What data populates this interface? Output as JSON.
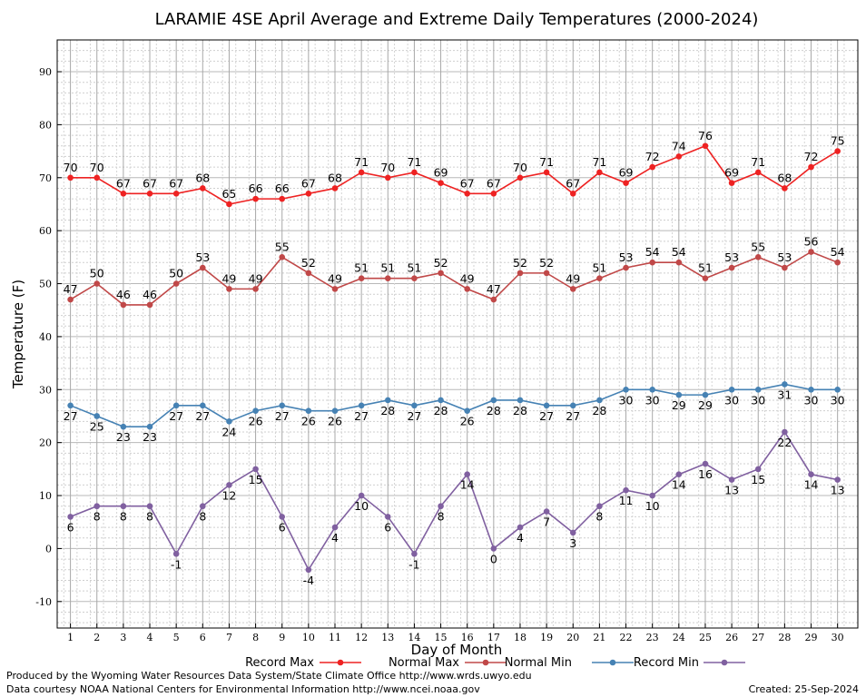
{
  "chart_data": {
    "type": "line",
    "title": "LARAMIE 4SE April Average and Extreme Daily Temperatures (2000-2024)",
    "xlabel": "Day of Month",
    "ylabel": "Temperature (F)",
    "ylim": [
      -15,
      96
    ],
    "yticks": [
      -10,
      0,
      10,
      20,
      30,
      40,
      50,
      60,
      70,
      80,
      90
    ],
    "x": [
      1,
      2,
      3,
      4,
      5,
      6,
      7,
      8,
      9,
      10,
      11,
      12,
      13,
      14,
      15,
      16,
      17,
      18,
      19,
      20,
      21,
      22,
      23,
      24,
      25,
      26,
      27,
      28,
      29,
      30
    ],
    "grid": true,
    "legend_position": "bottom",
    "series": [
      {
        "name": "Record Max",
        "color": "#ee2222",
        "label_position": "above",
        "values": [
          70,
          70,
          67,
          67,
          67,
          68,
          65,
          66,
          66,
          67,
          68,
          71,
          70,
          71,
          69,
          67,
          67,
          70,
          71,
          67,
          71,
          69,
          72,
          74,
          76,
          69,
          71,
          68,
          72,
          75
        ]
      },
      {
        "name": "Normal Max",
        "color": "#c04848",
        "label_position": "above",
        "values": [
          47,
          50,
          46,
          46,
          50,
          53,
          49,
          49,
          55,
          52,
          49,
          51,
          51,
          51,
          52,
          49,
          47,
          52,
          52,
          49,
          51,
          53,
          54,
          54,
          51,
          53,
          55,
          53,
          56,
          54
        ]
      },
      {
        "name": "Normal Min",
        "color": "#4682b4",
        "label_position": "below",
        "values": [
          27,
          25,
          23,
          23,
          27,
          27,
          24,
          26,
          27,
          26,
          26,
          27,
          28,
          27,
          28,
          26,
          28,
          28,
          27,
          27,
          28,
          30,
          30,
          29,
          29,
          30,
          30,
          31,
          30,
          30
        ]
      },
      {
        "name": "Record Min",
        "color": "#8060a0",
        "label_position": "below",
        "values": [
          6,
          8,
          8,
          8,
          -1,
          8,
          12,
          15,
          6,
          -4,
          4,
          10,
          6,
          -1,
          8,
          14,
          0,
          4,
          7,
          3,
          8,
          11,
          10,
          14,
          16,
          13,
          15,
          22,
          14,
          13
        ]
      }
    ]
  },
  "footer": {
    "producer": "Produced by the Wyoming Water Resources Data System/State Climate Office http://www.wrds.uwyo.edu",
    "courtesy": "Data courtesy NOAA National Centers for Environmental Information http://www.ncei.noaa.gov",
    "created": "Created:  25-Sep-2024"
  }
}
